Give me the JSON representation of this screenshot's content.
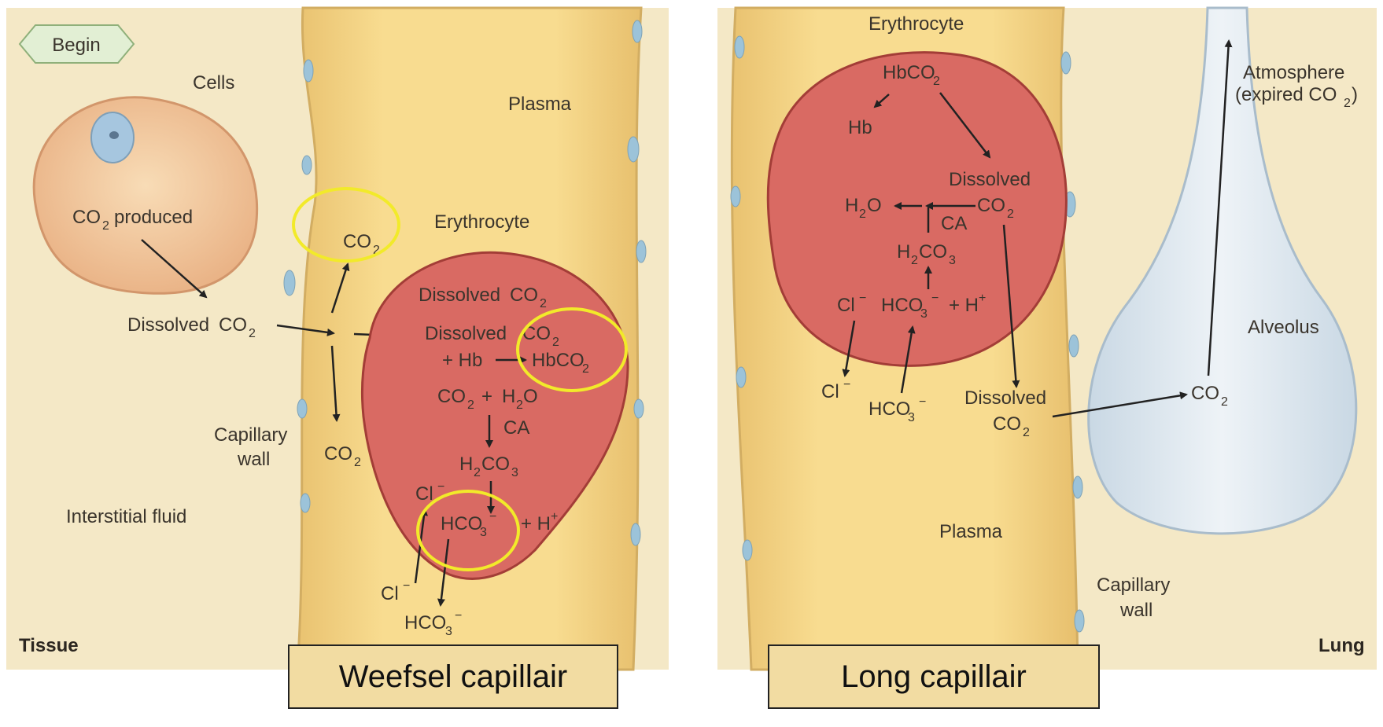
{
  "tissue_panel": {
    "begin": "Begin",
    "cells": "Cells",
    "co2_produced": "produced",
    "plasma": "Plasma",
    "erythrocyte": "Erythrocyte",
    "dissolved": "Dissolved",
    "co2": "CO",
    "hb_plus": "+ Hb",
    "hbco2": "HbCO",
    "h2o": "H",
    "h2o_o": "O",
    "ca": "CA",
    "h2co3": "H",
    "h2co3_co3": "CO",
    "hco3": "HCO",
    "h_plus": "+ H",
    "cl": "Cl",
    "capillary_wall_line1": "Capillary",
    "capillary_wall_line2": "wall",
    "interstitial_fluid": "Interstitial fluid",
    "tissue": "Tissue",
    "caption": "Weefsel capillair"
  },
  "lung_panel": {
    "erythrocyte": "Erythrocyte",
    "hbco2": "HbCO",
    "hb": "Hb",
    "dissolved": "Dissolved",
    "co2": "CO",
    "h2o": "H",
    "h2o_o": "O",
    "ca": "CA",
    "h2co3": "H",
    "h2co3_co3": "CO",
    "hco3": "HCO",
    "h_plus": "+ H",
    "cl": "Cl",
    "atmosphere": "Atmosphere",
    "expired": "(expired CO",
    "alveolus": "Alveolus",
    "plasma": "Plasma",
    "capillary_wall_line1": "Capillary",
    "capillary_wall_line2": "wall",
    "lung": "Lung",
    "caption": "Long capillair"
  },
  "glyphs": {
    "sub2": "2",
    "sub3": "3",
    "sup_minus": "−",
    "sup_plus": "+",
    "minus": "−"
  },
  "colors": {
    "background": "#f4e8c6",
    "plasma": "#f7d98a",
    "erythrocyte": "#d96a63",
    "alveolus": "#dfe7ee",
    "highlight": "#f2ea2a"
  }
}
